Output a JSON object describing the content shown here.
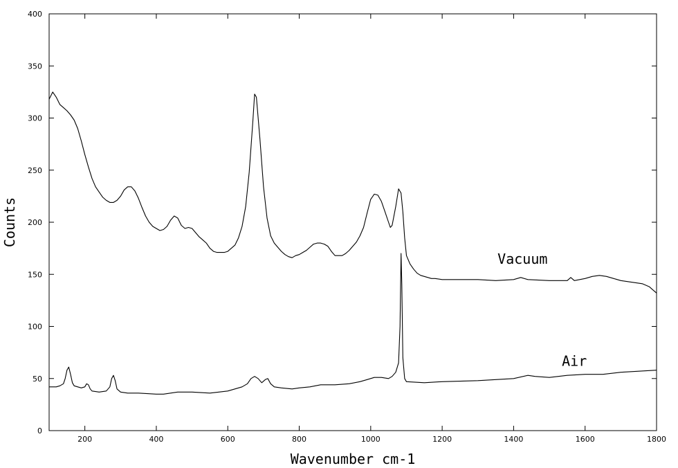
{
  "chart_data": {
    "type": "line",
    "xlabel": "Wavenumber cm-1",
    "ylabel": "Counts",
    "xlim": [
      100,
      1800
    ],
    "ylim": [
      0,
      400
    ],
    "x_ticks": [
      200,
      400,
      600,
      800,
      1000,
      1200,
      1400,
      1600,
      1800
    ],
    "y_ticks": [
      0,
      50,
      100,
      150,
      200,
      250,
      300,
      350,
      400
    ],
    "grid": false,
    "legend": "none",
    "series": [
      {
        "name": "Vacuum",
        "points": [
          [
            100,
            318
          ],
          [
            110,
            325
          ],
          [
            120,
            320
          ],
          [
            130,
            313
          ],
          [
            140,
            310
          ],
          [
            150,
            307
          ],
          [
            160,
            303
          ],
          [
            170,
            298
          ],
          [
            180,
            290
          ],
          [
            190,
            278
          ],
          [
            200,
            265
          ],
          [
            210,
            253
          ],
          [
            220,
            242
          ],
          [
            230,
            234
          ],
          [
            240,
            229
          ],
          [
            250,
            224
          ],
          [
            260,
            221
          ],
          [
            270,
            219
          ],
          [
            280,
            219
          ],
          [
            290,
            221
          ],
          [
            300,
            225
          ],
          [
            310,
            231
          ],
          [
            320,
            234
          ],
          [
            330,
            234
          ],
          [
            340,
            230
          ],
          [
            350,
            223
          ],
          [
            360,
            214
          ],
          [
            370,
            206
          ],
          [
            380,
            200
          ],
          [
            390,
            196
          ],
          [
            400,
            194
          ],
          [
            410,
            192
          ],
          [
            420,
            193
          ],
          [
            430,
            196
          ],
          [
            440,
            202
          ],
          [
            450,
            206
          ],
          [
            460,
            204
          ],
          [
            470,
            197
          ],
          [
            480,
            194
          ],
          [
            490,
            195
          ],
          [
            500,
            194
          ],
          [
            510,
            190
          ],
          [
            520,
            186
          ],
          [
            530,
            183
          ],
          [
            540,
            180
          ],
          [
            550,
            175
          ],
          [
            560,
            172
          ],
          [
            570,
            171
          ],
          [
            580,
            171
          ],
          [
            590,
            171
          ],
          [
            600,
            172
          ],
          [
            610,
            175
          ],
          [
            620,
            178
          ],
          [
            630,
            185
          ],
          [
            640,
            196
          ],
          [
            650,
            215
          ],
          [
            660,
            248
          ],
          [
            670,
            296
          ],
          [
            675,
            323
          ],
          [
            680,
            320
          ],
          [
            690,
            280
          ],
          [
            700,
            234
          ],
          [
            710,
            204
          ],
          [
            720,
            187
          ],
          [
            730,
            180
          ],
          [
            740,
            176
          ],
          [
            750,
            172
          ],
          [
            760,
            169
          ],
          [
            770,
            167
          ],
          [
            780,
            166
          ],
          [
            790,
            168
          ],
          [
            800,
            169
          ],
          [
            810,
            171
          ],
          [
            820,
            173
          ],
          [
            830,
            176
          ],
          [
            840,
            179
          ],
          [
            850,
            180
          ],
          [
            860,
            180
          ],
          [
            870,
            179
          ],
          [
            880,
            177
          ],
          [
            890,
            172
          ],
          [
            900,
            168
          ],
          [
            910,
            168
          ],
          [
            920,
            168
          ],
          [
            930,
            170
          ],
          [
            940,
            173
          ],
          [
            950,
            177
          ],
          [
            960,
            181
          ],
          [
            970,
            187
          ],
          [
            980,
            195
          ],
          [
            990,
            209
          ],
          [
            1000,
            222
          ],
          [
            1010,
            227
          ],
          [
            1020,
            226
          ],
          [
            1030,
            220
          ],
          [
            1040,
            210
          ],
          [
            1050,
            200
          ],
          [
            1055,
            195
          ],
          [
            1060,
            197
          ],
          [
            1070,
            215
          ],
          [
            1078,
            232
          ],
          [
            1085,
            228
          ],
          [
            1090,
            210
          ],
          [
            1095,
            185
          ],
          [
            1100,
            168
          ],
          [
            1110,
            160
          ],
          [
            1120,
            155
          ],
          [
            1130,
            151
          ],
          [
            1140,
            149
          ],
          [
            1150,
            148
          ],
          [
            1160,
            147
          ],
          [
            1170,
            146
          ],
          [
            1180,
            146
          ],
          [
            1200,
            145
          ],
          [
            1250,
            145
          ],
          [
            1300,
            145
          ],
          [
            1350,
            144
          ],
          [
            1400,
            145
          ],
          [
            1420,
            147
          ],
          [
            1440,
            145
          ],
          [
            1500,
            144
          ],
          [
            1550,
            144
          ],
          [
            1560,
            147
          ],
          [
            1570,
            144
          ],
          [
            1600,
            146
          ],
          [
            1620,
            148
          ],
          [
            1640,
            149
          ],
          [
            1660,
            148
          ],
          [
            1680,
            146
          ],
          [
            1700,
            144
          ],
          [
            1720,
            143
          ],
          [
            1740,
            142
          ],
          [
            1760,
            141
          ],
          [
            1780,
            138
          ],
          [
            1790,
            135
          ],
          [
            1800,
            132
          ]
        ]
      },
      {
        "name": "Air",
        "points": [
          [
            100,
            42
          ],
          [
            110,
            42
          ],
          [
            120,
            42
          ],
          [
            130,
            43
          ],
          [
            140,
            45
          ],
          [
            145,
            50
          ],
          [
            150,
            58
          ],
          [
            155,
            61
          ],
          [
            160,
            54
          ],
          [
            165,
            46
          ],
          [
            170,
            43
          ],
          [
            180,
            42
          ],
          [
            190,
            41
          ],
          [
            200,
            42
          ],
          [
            205,
            45
          ],
          [
            210,
            44
          ],
          [
            215,
            40
          ],
          [
            220,
            38
          ],
          [
            240,
            37
          ],
          [
            260,
            38
          ],
          [
            270,
            42
          ],
          [
            275,
            50
          ],
          [
            280,
            53
          ],
          [
            285,
            48
          ],
          [
            290,
            40
          ],
          [
            300,
            37
          ],
          [
            320,
            36
          ],
          [
            350,
            36
          ],
          [
            400,
            35
          ],
          [
            420,
            35
          ],
          [
            440,
            36
          ],
          [
            460,
            37
          ],
          [
            500,
            37
          ],
          [
            550,
            36
          ],
          [
            600,
            38
          ],
          [
            620,
            40
          ],
          [
            640,
            42
          ],
          [
            655,
            45
          ],
          [
            665,
            50
          ],
          [
            675,
            52
          ],
          [
            685,
            50
          ],
          [
            695,
            46
          ],
          [
            705,
            49
          ],
          [
            712,
            50
          ],
          [
            720,
            45
          ],
          [
            730,
            42
          ],
          [
            750,
            41
          ],
          [
            780,
            40
          ],
          [
            800,
            41
          ],
          [
            830,
            42
          ],
          [
            860,
            44
          ],
          [
            900,
            44
          ],
          [
            940,
            45
          ],
          [
            970,
            47
          ],
          [
            990,
            49
          ],
          [
            1010,
            51
          ],
          [
            1030,
            51
          ],
          [
            1050,
            50
          ],
          [
            1060,
            52
          ],
          [
            1070,
            56
          ],
          [
            1078,
            65
          ],
          [
            1082,
            100
          ],
          [
            1085,
            170
          ],
          [
            1087,
            140
          ],
          [
            1090,
            70
          ],
          [
            1095,
            50
          ],
          [
            1100,
            47
          ],
          [
            1150,
            46
          ],
          [
            1200,
            47
          ],
          [
            1300,
            48
          ],
          [
            1400,
            50
          ],
          [
            1440,
            53
          ],
          [
            1460,
            52
          ],
          [
            1500,
            51
          ],
          [
            1550,
            53
          ],
          [
            1600,
            54
          ],
          [
            1650,
            54
          ],
          [
            1700,
            56
          ],
          [
            1750,
            57
          ],
          [
            1800,
            58
          ]
        ]
      }
    ],
    "annotations": [
      {
        "text": "Vacuum",
        "x": 1355,
        "y": 160
      },
      {
        "text": "Air",
        "x": 1535,
        "y": 62
      }
    ]
  }
}
